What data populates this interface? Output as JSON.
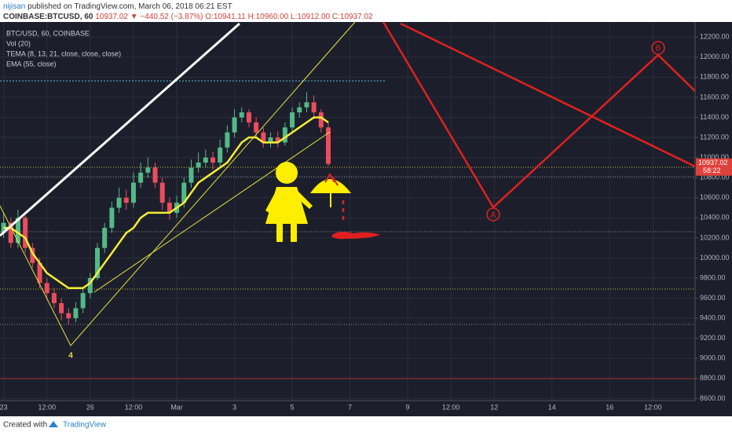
{
  "chart_data": {
    "type": "candlestick",
    "author": "nijisan",
    "published": "published on TradingView.com, March 06, 2018 06:21 EST",
    "symbol": "COINBASE:BTCUSD, 60",
    "last": "10937.02",
    "change": "▼ −440.52 (−3.87%)",
    "ohlc": "O:10941.11 H:10960.00 L:10912.00 C:10937.02",
    "legend": [
      "BTC/USD, 60, COINBASE",
      "Vol (20)",
      "TEMA (8, 13, 21, close, close, close)"
    ],
    "price_label": "10937.02",
    "countdown": "58:22",
    "annotations": [
      "A",
      "B",
      "4"
    ],
    "footer": "Created with",
    "brand": "TradingView",
    "up_color": "#53b987",
    "down_color": "#eb4d5c",
    "grid": true,
    "x": [
      "2018-02-23T00:00",
      "2018-02-23T06:00",
      "2018-02-23T12:00",
      "2018-02-23T18:00",
      "2018-02-24T00:00",
      "2018-02-24T06:00",
      "2018-02-24T12:00",
      "2018-02-24T18:00",
      "2018-02-25T00:00",
      "2018-02-25T06:00",
      "2018-02-25T12:00",
      "2018-02-25T18:00",
      "2018-02-26T00:00",
      "2018-02-26T06:00",
      "2018-02-26T12:00",
      "2018-02-26T18:00",
      "2018-02-27T00:00",
      "2018-02-27T06:00",
      "2018-02-27T12:00",
      "2018-02-27T18:00",
      "2018-02-28T00:00",
      "2018-02-28T06:00",
      "2018-02-28T12:00",
      "2018-02-28T18:00",
      "2018-03-01T00:00",
      "2018-03-01T06:00",
      "2018-03-01T12:00",
      "2018-03-01T18:00",
      "2018-03-02T00:00",
      "2018-03-02T06:00",
      "2018-03-02T12:00",
      "2018-03-02T18:00",
      "2018-03-03T00:00",
      "2018-03-03T06:00",
      "2018-03-03T12:00",
      "2018-03-03T18:00",
      "2018-03-04T00:00",
      "2018-03-04T06:00",
      "2018-03-04T12:00",
      "2018-03-04T18:00",
      "2018-03-05T00:00",
      "2018-03-05T06:00",
      "2018-03-05T12:00",
      "2018-03-05T18:00",
      "2018-03-06T00:00",
      "2018-03-06T06:00"
    ],
    "open": [
      10250,
      10350,
      10150,
      10400,
      10100,
      9950,
      9750,
      9650,
      9550,
      9450,
      9400,
      9500,
      9650,
      9800,
      10100,
      10300,
      10500,
      10600,
      10550,
      10750,
      10850,
      10900,
      10750,
      10550,
      10450,
      10550,
      10750,
      10900,
      10950,
      11000,
      10950,
      11100,
      11250,
      11400,
      11450,
      11350,
      11250,
      11150,
      11200,
      11150,
      11300,
      11450,
      11500,
      11550,
      11450,
      11300
    ],
    "high": [
      10450,
      10400,
      10480,
      10420,
      10150,
      10000,
      9800,
      9700,
      9600,
      9500,
      9560,
      9700,
      9850,
      10150,
      10350,
      10560,
      10700,
      10680,
      10850,
      10950,
      11000,
      10950,
      10800,
      10600,
      10620,
      10800,
      10980,
      11050,
      11080,
      11060,
      11180,
      11320,
      11480,
      11500,
      11480,
      11400,
      11300,
      11250,
      11260,
      11350,
      11500,
      11550,
      11650,
      11620,
      11480,
      11350
    ],
    "low": [
      10200,
      10100,
      10100,
      10050,
      9900,
      9700,
      9580,
      9500,
      9380,
      9340,
      9360,
      9450,
      9600,
      9780,
      10050,
      10250,
      10450,
      10480,
      10500,
      10700,
      10800,
      10700,
      10480,
      10380,
      10400,
      10500,
      10700,
      10850,
      10900,
      10880,
      10900,
      11050,
      11200,
      11350,
      11300,
      11200,
      11100,
      11100,
      11100,
      11120,
      11250,
      11400,
      11450,
      11380,
      11250,
      10912
    ],
    "close": [
      10350,
      10150,
      10400,
      10100,
      9950,
      9750,
      9650,
      9550,
      9450,
      9400,
      9500,
      9650,
      9800,
      10100,
      10300,
      10500,
      10600,
      10550,
      10750,
      10850,
      10900,
      10750,
      10550,
      10450,
      10550,
      10750,
      10900,
      10950,
      11000,
      10950,
      11100,
      11250,
      11400,
      11450,
      11350,
      11250,
      11150,
      11200,
      11150,
      11300,
      11450,
      11500,
      11550,
      11450,
      11300,
      10937.02
    ],
    "series": [
      {
        "name": "EMA (55, close)",
        "color": "#f5ee35",
        "values": [
          10300,
          10300,
          10250,
          10200,
          10050,
          9950,
          9850,
          9800,
          9750,
          9700,
          9700,
          9700,
          9750,
          9850,
          9950,
          10050,
          10150,
          10250,
          10300,
          10400,
          10450,
          10450,
          10450,
          10450,
          10500,
          10550,
          10650,
          10750,
          10800,
          10850,
          10900,
          10950,
          11050,
          11150,
          11200,
          11200,
          11150,
          11150,
          11150,
          11200,
          11250,
          11300,
          11350,
          11400,
          11400,
          11350
        ]
      }
    ],
    "xlim": [
      "2018-02-22T21:00",
      "2018-03-18T23:00"
    ],
    "xticks": [
      {
        "value": "2018-02-23T00:00",
        "label": "23"
      },
      {
        "value": "2018-02-24T12:00",
        "label": "12:00"
      },
      {
        "value": "2018-02-26T00:00",
        "label": "26"
      },
      {
        "value": "2018-02-27T12:00",
        "label": "12:00"
      },
      {
        "value": "2018-03-01T00:00",
        "label": "Mar"
      },
      {
        "value": "2018-03-03T00:00",
        "label": "3"
      },
      {
        "value": "2018-03-05T00:00",
        "label": "5"
      },
      {
        "value": "2018-03-07T00:00",
        "label": "7"
      },
      {
        "value": "2018-03-09T00:00",
        "label": "9"
      },
      {
        "value": "2018-03-10T12:00",
        "label": "12:00"
      },
      {
        "value": "2018-03-12T00:00",
        "label": "12"
      },
      {
        "value": "2018-03-14T00:00",
        "label": "14"
      },
      {
        "value": "2018-03-16T00:00",
        "label": "16"
      },
      {
        "value": "2018-03-17T12:00",
        "label": "12:00"
      }
    ],
    "ylim": [
      8580,
      12350
    ],
    "yticks": [
      {
        "value": 8600,
        "label": "8600.00"
      },
      {
        "value": 8800,
        "label": "8800.00"
      },
      {
        "value": 9000,
        "label": "9000.00"
      },
      {
        "value": 9200,
        "label": "9200.00"
      },
      {
        "value": 9400,
        "label": "9400.00"
      },
      {
        "value": 9600,
        "label": "9600.00"
      },
      {
        "value": 9800,
        "label": "9800.00"
      },
      {
        "value": 10000,
        "label": "10000.00"
      },
      {
        "value": 10200,
        "label": "10200.00"
      },
      {
        "value": 10400,
        "label": "10400.00"
      },
      {
        "value": 10600,
        "label": "10600.00"
      },
      {
        "value": 10800,
        "label": "10800.00"
      },
      {
        "value": 11000,
        "label": "11000.00"
      },
      {
        "value": 11200,
        "label": "11200.00"
      },
      {
        "value": 11400,
        "label": "11400.00"
      },
      {
        "value": 11600,
        "label": "11600.00"
      },
      {
        "value": 11800,
        "label": "11800.00"
      },
      {
        "value": 12000,
        "label": "12000.00"
      },
      {
        "value": 12200,
        "label": "12200.00"
      }
    ]
  }
}
